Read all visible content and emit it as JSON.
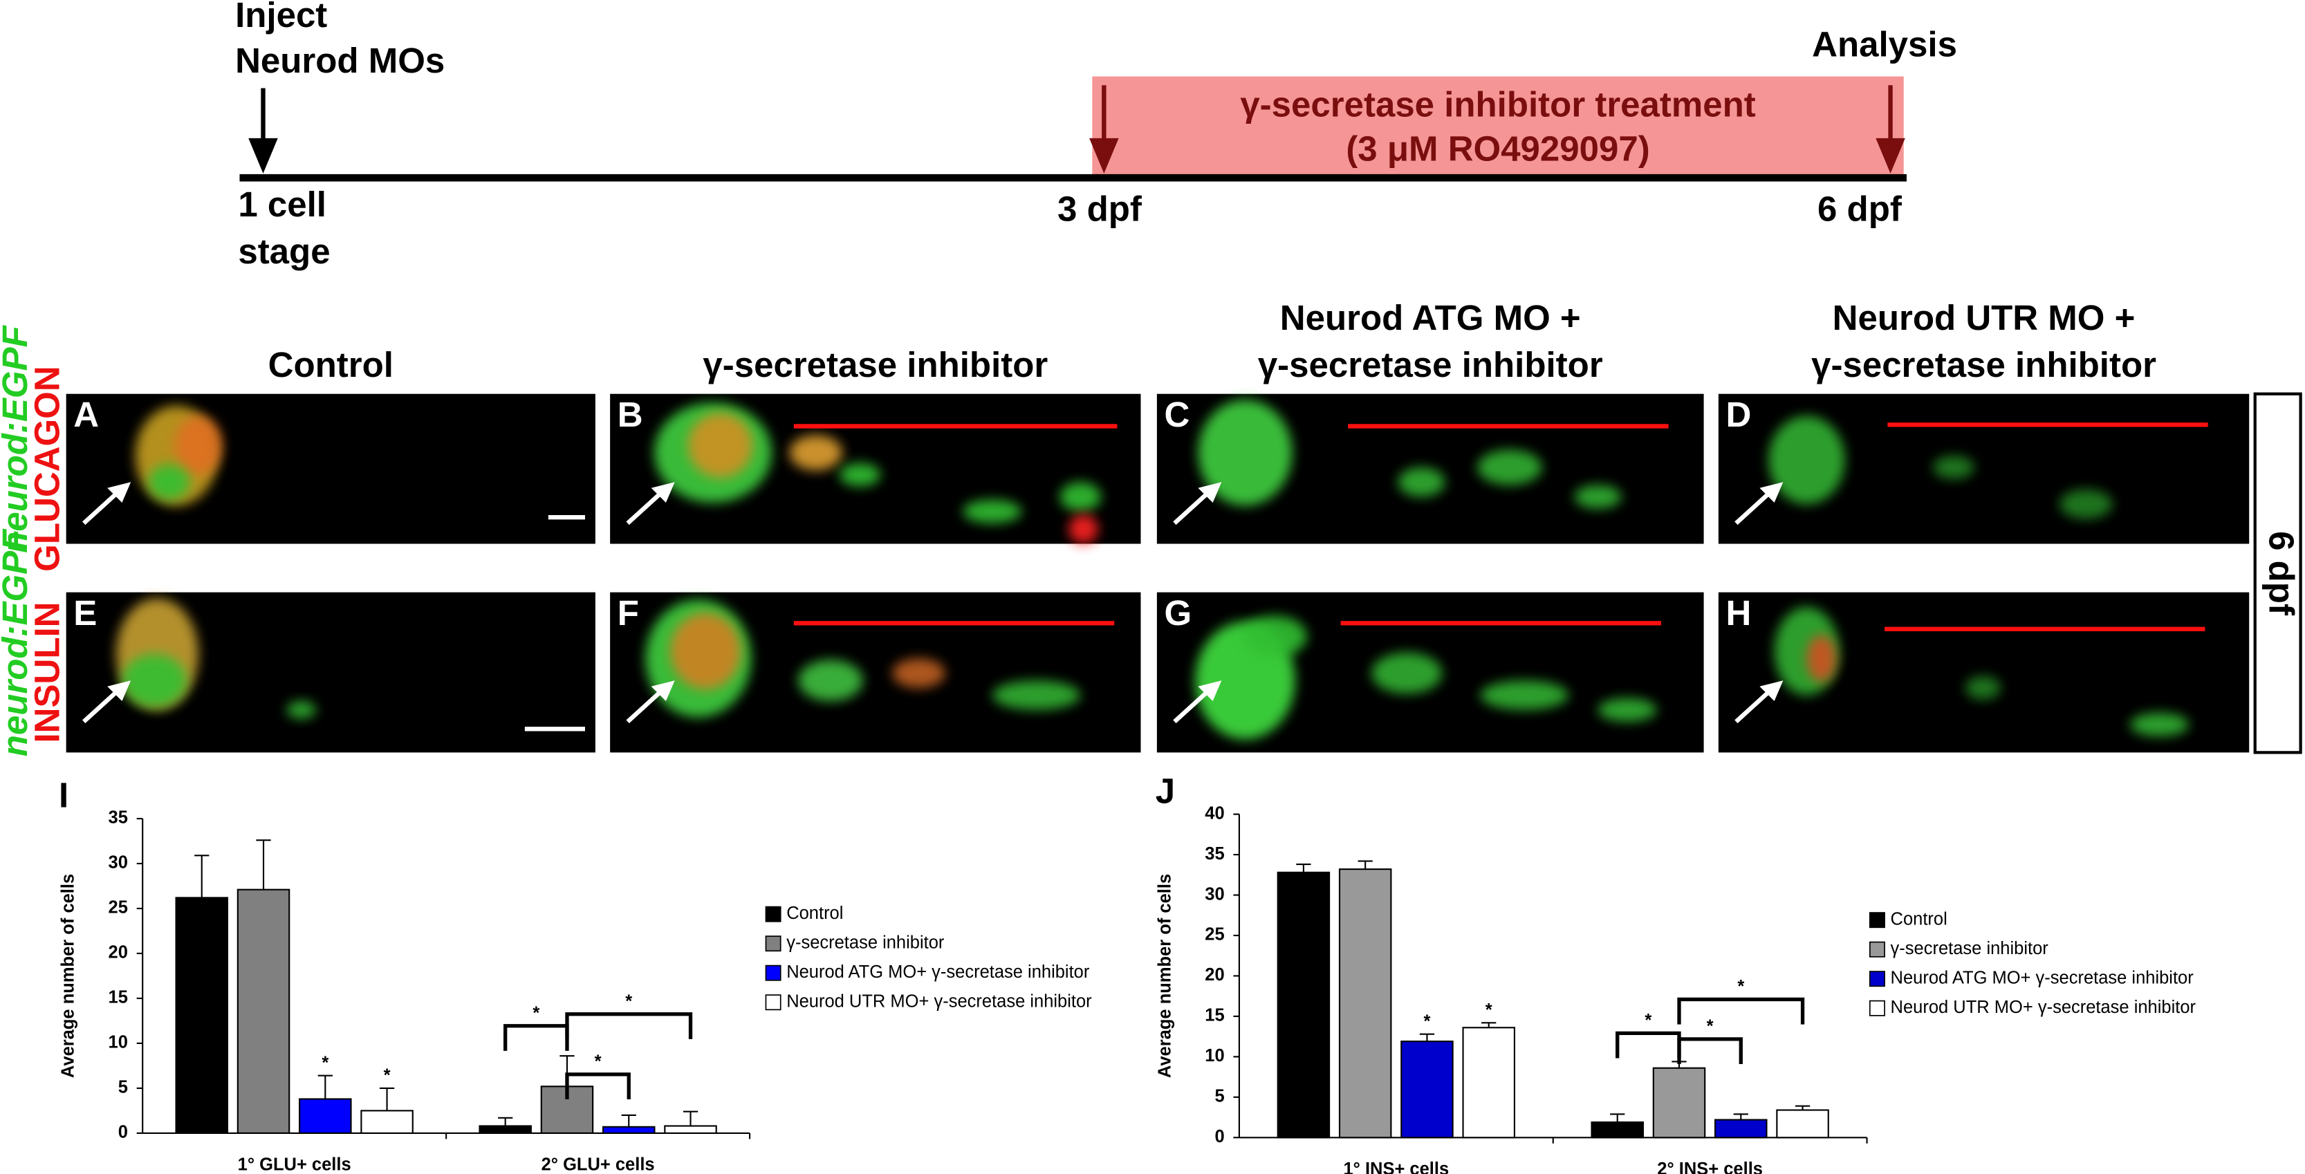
{
  "timeline": {
    "start_label": [
      "Inject",
      "Neurod MOs"
    ],
    "start_point": [
      "1 cell",
      "stage"
    ],
    "treatment": [
      "γ-secretase inhibitor treatment",
      "(3 μM RO4929097)"
    ],
    "treatment_start": "3 dpf",
    "end_point": "6 dpf",
    "end_label": "Analysis"
  },
  "columns": [
    {
      "title": [
        "Control"
      ]
    },
    {
      "title": [
        "γ-secretase inhibitor"
      ]
    },
    {
      "title": [
        "Neurod ATG MO +",
        "γ-secretase inhibitor"
      ]
    },
    {
      "title": [
        "Neurod UTR MO +",
        "γ-secretase inhibitor"
      ]
    }
  ],
  "rows": [
    {
      "marker": "neurod:EGPF",
      "stain": "GLUCAGON",
      "panels": [
        "A",
        "B",
        "C",
        "D"
      ]
    },
    {
      "marker": "neurod:EGPF",
      "stain": "INSULIN",
      "panels": [
        "E",
        "F",
        "G",
        "H"
      ]
    }
  ],
  "stage_label": "6 dpf",
  "chart_data": [
    {
      "type": "bar",
      "title": "I",
      "ylabel": "Average number of cells",
      "categories": [
        "1° GLU+ cells",
        "2° GLU+ cells"
      ],
      "series": [
        {
          "name": "Control",
          "color": "#000000",
          "values": [
            26.2,
            0.8
          ],
          "errors": [
            4.7,
            0.9
          ]
        },
        {
          "name": "γ-secretase inhibitor",
          "color": "#808080",
          "values": [
            27.1,
            5.2
          ],
          "errors": [
            5.5,
            3.4
          ]
        },
        {
          "name": "Neurod ATG MO+ γ-secretase inhibitor",
          "color": "#0000ff",
          "values": [
            3.8,
            0.7
          ],
          "errors": [
            2.6,
            1.3
          ]
        },
        {
          "name": "Neurod UTR MO+ γ-secretase inhibitor",
          "color": "#ffffff",
          "values": [
            2.5,
            0.8
          ],
          "errors": [
            2.5,
            1.6
          ]
        }
      ],
      "ylim": [
        0,
        35
      ],
      "yticks": [
        0,
        5,
        10,
        15,
        20,
        25,
        30,
        35
      ],
      "annotations": [
        {
          "text": "*",
          "category": 0,
          "series": 2
        },
        {
          "text": "*",
          "category": 0,
          "series": 3
        }
      ],
      "brackets": [
        {
          "text": "*",
          "category": 1,
          "from": 0,
          "to": 1
        },
        {
          "text": "*",
          "category": 1,
          "from": 1,
          "to": 2
        },
        {
          "text": "*",
          "category": 1,
          "from": 1,
          "to": 3
        }
      ]
    },
    {
      "type": "bar",
      "title": "J",
      "ylabel": "Average number of cells",
      "categories": [
        "1° INS+ cells",
        "2° INS+ cells"
      ],
      "series": [
        {
          "name": "Control",
          "color": "#000000",
          "values": [
            32.8,
            1.9
          ],
          "errors": [
            1.0,
            1.0
          ]
        },
        {
          "name": "γ-secretase inhibitor",
          "color": "#999999",
          "values": [
            33.2,
            8.6
          ],
          "errors": [
            1.0,
            0.8
          ]
        },
        {
          "name": "Neurod ATG MO+ γ-secretase inhibitor",
          "color": "#0000cc",
          "values": [
            11.9,
            2.2
          ],
          "errors": [
            0.9,
            0.7
          ]
        },
        {
          "name": "Neurod UTR MO+ γ-secretase inhibitor",
          "color": "#ffffff",
          "values": [
            13.6,
            3.4
          ],
          "errors": [
            0.6,
            0.5
          ]
        }
      ],
      "ylim": [
        0,
        40
      ],
      "yticks": [
        0,
        5,
        10,
        15,
        20,
        25,
        30,
        35,
        40
      ],
      "annotations": [
        {
          "text": "*",
          "category": 0,
          "series": 2
        },
        {
          "text": "*",
          "category": 0,
          "series": 3
        }
      ],
      "brackets": [
        {
          "text": "*",
          "category": 1,
          "from": 0,
          "to": 1
        },
        {
          "text": "*",
          "category": 1,
          "from": 1,
          "to": 2
        },
        {
          "text": "*",
          "category": 1,
          "from": 1,
          "to": 3
        }
      ]
    }
  ]
}
